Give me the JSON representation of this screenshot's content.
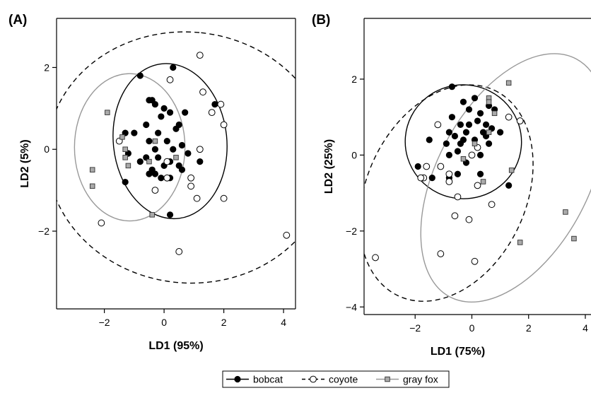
{
  "chart_data": [
    {
      "type": "scatter",
      "panel_label": "(A)",
      "xlabel": "LD1 (95%)",
      "ylabel": "LD2 (5%)",
      "xlim": [
        -3.6,
        4.4
      ],
      "ylim": [
        -3.9,
        3.2
      ],
      "xticks": [
        -2,
        0,
        2,
        4
      ],
      "yticks": [
        -2,
        0,
        2
      ],
      "grid": false,
      "series": [
        {
          "name": "bobcat",
          "marker": "filled-circle",
          "points": [
            [
              -0.8,
              1.8
            ],
            [
              0.3,
              2.0
            ],
            [
              -0.5,
              1.2
            ],
            [
              -0.3,
              1.1
            ],
            [
              -0.4,
              1.2
            ],
            [
              0.0,
              1.0
            ],
            [
              0.2,
              0.9
            ],
            [
              0.7,
              0.9
            ],
            [
              -0.1,
              0.8
            ],
            [
              0.5,
              0.6
            ],
            [
              -0.6,
              0.6
            ],
            [
              -0.2,
              0.4
            ],
            [
              0.4,
              0.5
            ],
            [
              -1.0,
              0.4
            ],
            [
              -1.3,
              0.4
            ],
            [
              -0.5,
              0.2
            ],
            [
              0.1,
              0.2
            ],
            [
              0.6,
              0.1
            ],
            [
              -0.3,
              0.0
            ],
            [
              0.3,
              0.0
            ],
            [
              0.8,
              -0.1
            ],
            [
              -1.2,
              -0.1
            ],
            [
              -0.6,
              -0.2
            ],
            [
              0.2,
              -0.3
            ],
            [
              -0.8,
              -0.3
            ],
            [
              0.5,
              -0.4
            ],
            [
              0.0,
              -0.4
            ],
            [
              1.2,
              -0.3
            ],
            [
              -0.3,
              -0.6
            ],
            [
              0.2,
              -0.7
            ],
            [
              -0.5,
              -0.6
            ],
            [
              -0.1,
              -0.7
            ],
            [
              -1.3,
              -0.8
            ],
            [
              0.2,
              -1.6
            ],
            [
              -0.4,
              -0.5
            ],
            [
              0.6,
              -0.5
            ],
            [
              1.7,
              1.1
            ],
            [
              -0.2,
              -0.2
            ]
          ]
        },
        {
          "name": "coyote",
          "marker": "open-circle",
          "points": [
            [
              1.2,
              2.3
            ],
            [
              0.2,
              1.7
            ],
            [
              1.3,
              1.4
            ],
            [
              1.9,
              1.1
            ],
            [
              1.6,
              0.9
            ],
            [
              2.0,
              0.6
            ],
            [
              -1.5,
              0.2
            ],
            [
              1.2,
              0.0
            ],
            [
              0.1,
              -0.7
            ],
            [
              0.9,
              -0.7
            ],
            [
              0.9,
              -0.9
            ],
            [
              1.1,
              -1.2
            ],
            [
              2.0,
              -1.2
            ],
            [
              0.5,
              -2.5
            ],
            [
              -0.3,
              -1.0
            ],
            [
              4.1,
              -2.1
            ],
            [
              -2.1,
              -1.8
            ],
            [
              0.1,
              -0.3
            ]
          ]
        },
        {
          "name": "gray fox",
          "marker": "gray-square",
          "points": [
            [
              -1.9,
              0.9
            ],
            [
              -1.4,
              0.3
            ],
            [
              -1.3,
              0.0
            ],
            [
              -1.3,
              -0.2
            ],
            [
              -1.2,
              -0.4
            ],
            [
              -2.4,
              -0.5
            ],
            [
              -2.4,
              -0.9
            ],
            [
              -0.3,
              0.2
            ],
            [
              -0.5,
              -0.3
            ],
            [
              0.4,
              -0.2
            ],
            [
              -0.4,
              -1.6
            ]
          ]
        }
      ],
      "ellipses": [
        {
          "series": "bobcat",
          "cx": 0.2,
          "cy": 0.2,
          "rx": 1.9,
          "ry": 1.9,
          "angle_deg": -6,
          "stroke": "#000000",
          "dash": false
        },
        {
          "series": "coyote",
          "cx": 0.8,
          "cy": -0.2,
          "rx": 4.2,
          "ry": 3.45,
          "angle_deg": -84,
          "stroke": "#000000",
          "dash": true
        },
        {
          "series": "gray fox",
          "cx": -1.15,
          "cy": 0.05,
          "rx": 1.85,
          "ry": 1.8,
          "angle_deg": 0,
          "stroke": "#999999",
          "dash": false
        }
      ]
    },
    {
      "type": "scatter",
      "panel_label": "(B)",
      "xlabel": "LD1 (75%)",
      "ylabel": "LD2 (25%)",
      "xlim": [
        -3.8,
        4.2
      ],
      "ylim": [
        -4.2,
        3.6
      ],
      "xticks": [
        -2,
        0,
        2,
        4
      ],
      "yticks": [
        -4,
        -2,
        0,
        2
      ],
      "grid": false,
      "series": [
        {
          "name": "bobcat",
          "marker": "filled-circle",
          "points": [
            [
              -0.7,
              1.8
            ],
            [
              0.1,
              1.5
            ],
            [
              -0.3,
              1.4
            ],
            [
              0.6,
              1.3
            ],
            [
              -0.1,
              1.2
            ],
            [
              0.3,
              1.1
            ],
            [
              0.8,
              1.2
            ],
            [
              -0.7,
              1.0
            ],
            [
              0.2,
              0.9
            ],
            [
              0.5,
              0.8
            ],
            [
              -0.4,
              0.8
            ],
            [
              -0.1,
              0.8
            ],
            [
              0.7,
              0.7
            ],
            [
              0.4,
              0.6
            ],
            [
              -0.6,
              0.5
            ],
            [
              -0.8,
              0.6
            ],
            [
              -0.3,
              0.4
            ],
            [
              0.1,
              0.4
            ],
            [
              0.6,
              0.3
            ],
            [
              1.0,
              0.6
            ],
            [
              -1.5,
              0.4
            ],
            [
              -0.9,
              0.3
            ],
            [
              -0.4,
              0.3
            ],
            [
              0.2,
              0.2
            ],
            [
              0.3,
              0.0
            ],
            [
              -0.5,
              0.1
            ],
            [
              -0.8,
              0.0
            ],
            [
              -0.2,
              -0.2
            ],
            [
              -1.9,
              -0.3
            ],
            [
              -0.8,
              -0.6
            ],
            [
              -0.5,
              -0.5
            ],
            [
              0.3,
              -0.5
            ],
            [
              -1.4,
              -0.6
            ],
            [
              1.3,
              -0.8
            ],
            [
              0.5,
              0.5
            ],
            [
              -0.2,
              0.6
            ]
          ]
        },
        {
          "name": "coyote",
          "marker": "open-circle",
          "points": [
            [
              -1.2,
              0.8
            ],
            [
              1.3,
              1.0
            ],
            [
              1.7,
              0.9
            ],
            [
              0.2,
              0.2
            ],
            [
              0.0,
              0.0
            ],
            [
              -1.6,
              -0.3
            ],
            [
              -1.1,
              -0.3
            ],
            [
              -0.8,
              -0.5
            ],
            [
              -1.7,
              -0.6
            ],
            [
              -0.8,
              -0.7
            ],
            [
              0.2,
              -0.8
            ],
            [
              -0.5,
              -1.1
            ],
            [
              0.7,
              -1.3
            ],
            [
              -0.6,
              -1.6
            ],
            [
              -0.1,
              -1.7
            ],
            [
              -1.1,
              -2.6
            ],
            [
              0.1,
              -2.8
            ],
            [
              -3.4,
              -2.7
            ],
            [
              -1.8,
              -0.6
            ]
          ]
        },
        {
          "name": "gray fox",
          "marker": "gray-square",
          "points": [
            [
              1.3,
              1.9
            ],
            [
              0.6,
              1.5
            ],
            [
              0.6,
              1.4
            ],
            [
              0.8,
              1.1
            ],
            [
              0.6,
              0.6
            ],
            [
              0.1,
              0.3
            ],
            [
              -0.3,
              -0.1
            ],
            [
              1.4,
              -0.4
            ],
            [
              0.4,
              -0.7
            ],
            [
              3.3,
              -1.5
            ],
            [
              1.7,
              -2.3
            ],
            [
              3.6,
              -2.2
            ]
          ]
        }
      ],
      "ellipses": [
        {
          "series": "bobcat",
          "cx": -0.3,
          "cy": 0.35,
          "rx": 2.05,
          "ry": 1.5,
          "angle_deg": 5,
          "stroke": "#000000",
          "dash": false
        },
        {
          "series": "coyote",
          "cx": -0.9,
          "cy": -1.0,
          "rx": 4.0,
          "ry": 2.1,
          "angle_deg": -65,
          "stroke": "#000000",
          "dash": true
        },
        {
          "series": "gray fox",
          "cx": 1.45,
          "cy": -0.6,
          "rx": 4.75,
          "ry": 2.0,
          "angle_deg": -62,
          "stroke": "#999999",
          "dash": false
        }
      ]
    }
  ],
  "legend": {
    "placement": "bottom-center",
    "items": [
      {
        "label": "bobcat",
        "marker": "filled-circle",
        "line_color": "#000000",
        "dash": false
      },
      {
        "label": "coyote",
        "marker": "open-circle",
        "line_color": "#000000",
        "dash": true
      },
      {
        "label": "gray fox",
        "marker": "gray-square",
        "line_color": "#999999",
        "dash": false
      }
    ]
  },
  "colors": {
    "bobcat_fill": "#000000",
    "coyote_fill": "#ffffff",
    "grayfox_fill": "#aaaaaa",
    "grayfox_ellipse": "#999999",
    "axis": "#000000"
  }
}
